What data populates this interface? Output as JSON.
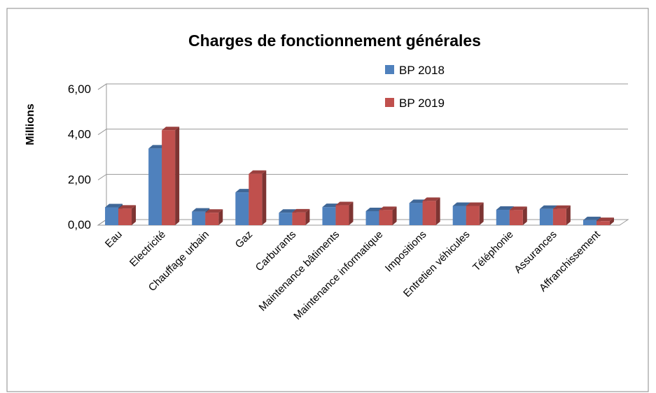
{
  "chart_data": {
    "type": "bar3d",
    "title": "Charges de fonctionnement générales",
    "y_label": "Millions",
    "categories": [
      "Eau",
      "Electricité",
      "Chauffage urbain",
      "Gaz",
      "Carburants",
      "Maintenance bâtiments",
      "Maintenance informatique",
      "Impositions",
      "Entretien véhicules",
      "Téléphonie",
      "Assurances",
      "Affranchissement"
    ],
    "series": [
      {
        "name": "BP 2018",
        "color": "#4f81bd",
        "values": [
          0.79,
          3.39,
          0.6,
          1.45,
          0.55,
          0.8,
          0.62,
          0.98,
          0.85,
          0.68,
          0.72,
          0.22
        ]
      },
      {
        "name": "BP 2019",
        "color": "#c0504d",
        "values": [
          0.73,
          4.2,
          0.55,
          2.27,
          0.56,
          0.88,
          0.67,
          1.07,
          0.85,
          0.67,
          0.72,
          0.18
        ]
      }
    ],
    "ylim": [
      0,
      6
    ],
    "yticks": [
      {
        "value": 0,
        "label": "0,00"
      },
      {
        "value": 2,
        "label": "2,00"
      },
      {
        "value": 4,
        "label": "4,00"
      },
      {
        "value": 6,
        "label": "6,00"
      }
    ],
    "grid": true,
    "legend": "top-right"
  }
}
